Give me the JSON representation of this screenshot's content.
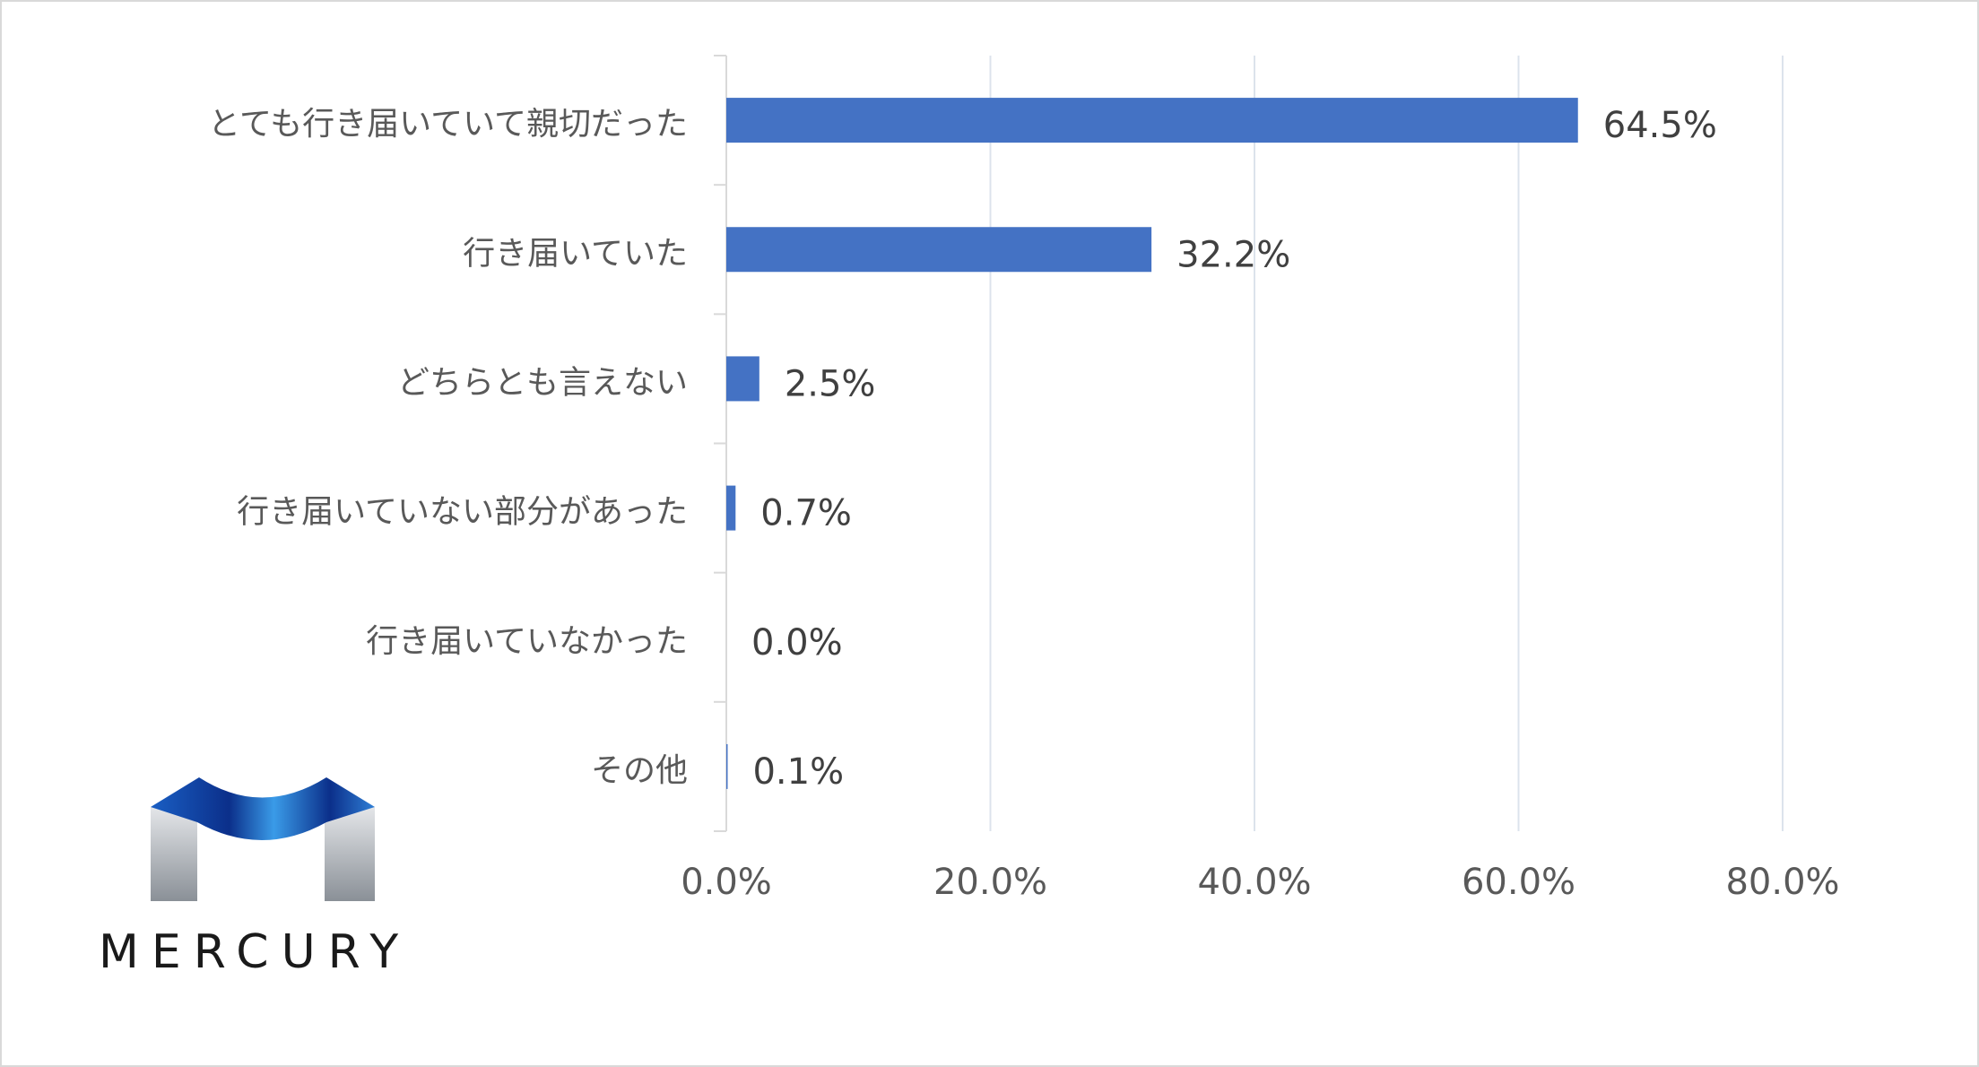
{
  "chart_data": {
    "type": "bar",
    "orientation": "horizontal",
    "categories": [
      "とても行き届いていて親切だった",
      "行き届いていた",
      "どちらとも言えない",
      "行き届いていない部分があった",
      "行き届いていなかった",
      "その他"
    ],
    "values": [
      64.5,
      32.2,
      2.5,
      0.7,
      0.0,
      0.1
    ],
    "data_labels": [
      "64.5%",
      "32.2%",
      "2.5%",
      "0.7%",
      "0.0%",
      "0.1%"
    ],
    "x_ticks": [
      "0.0%",
      "20.0%",
      "40.0%",
      "60.0%",
      "80.0%"
    ],
    "xlim": [
      0,
      80
    ],
    "grid": "vertical",
    "bar_color": "#4472C4",
    "grid_color": "#DCE3EC",
    "axis_color": "#D9D9D9"
  },
  "logo": {
    "text": "MERCURY",
    "colors": {
      "blue_dark": "#0B2F8A",
      "blue_light": "#2E8DE0",
      "gray_light": "#D5D8DC",
      "gray_dark": "#8A9097"
    }
  }
}
